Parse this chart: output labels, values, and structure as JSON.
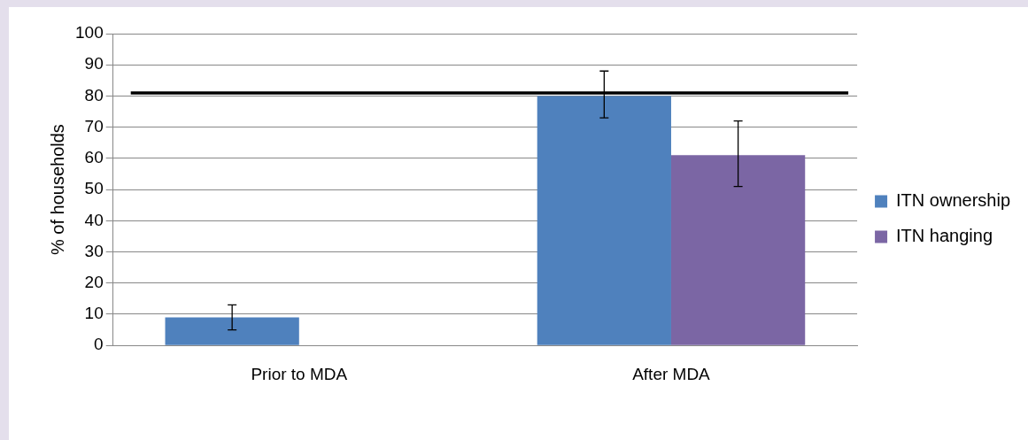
{
  "chart_data": {
    "type": "bar",
    "ylabel": "% of households",
    "categories": [
      "Prior to MDA",
      "After MDA"
    ],
    "series": [
      {
        "name": "ITN ownership",
        "color": "#4f81bd",
        "values": [
          9,
          80
        ],
        "errors": [
          [
            5,
            13
          ],
          [
            73,
            88
          ]
        ]
      },
      {
        "name": "ITN hanging",
        "color": "#7b66a4",
        "values": [
          null,
          61
        ],
        "errors": [
          null,
          [
            51,
            72
          ]
        ]
      }
    ],
    "ylim": [
      0,
      100
    ],
    "yticks": [
      0,
      10,
      20,
      30,
      40,
      50,
      60,
      70,
      80,
      90,
      100
    ],
    "grid": "y",
    "legend": "right",
    "ref_lines": [
      {
        "axis": "y",
        "value": 81,
        "color": "#000000"
      }
    ]
  }
}
